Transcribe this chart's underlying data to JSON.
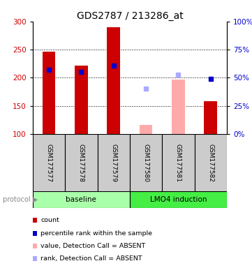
{
  "title": "GDS2787 / 213286_at",
  "samples": [
    "GSM177577",
    "GSM177578",
    "GSM177579",
    "GSM177580",
    "GSM177581",
    "GSM177582"
  ],
  "ylim_left": [
    100,
    300
  ],
  "ylim_right": [
    0,
    100
  ],
  "yticks_left": [
    100,
    150,
    200,
    250,
    300
  ],
  "yticks_right": [
    0,
    25,
    50,
    75,
    100
  ],
  "red_bars_present_idx": [
    0,
    1,
    2,
    5
  ],
  "red_bars_present_vals": [
    246,
    222,
    290,
    158
  ],
  "red_bars_absent_idx": [
    3,
    4
  ],
  "red_bars_absent_vals": [
    116,
    197
  ],
  "blue_sq_present_idx": [
    0,
    1,
    2,
    5
  ],
  "blue_sq_present_vals": [
    214,
    210,
    222,
    198
  ],
  "blue_sq_absent_idx": [
    3,
    4
  ],
  "blue_sq_absent_vals": [
    180,
    205
  ],
  "red_color": "#cc0000",
  "red_absent_color": "#ffaaaa",
  "blue_color": "#0000cc",
  "blue_absent_color": "#aaaaff",
  "sample_box_color": "#cccccc",
  "protocol_baseline_color": "#aaffaa",
  "protocol_lmo4_color": "#44ee44",
  "bar_width": 0.4,
  "title_fontsize": 10,
  "protocol_groups": [
    {
      "label": "baseline",
      "start": 0,
      "end": 2,
      "color": "#aaffaa"
    },
    {
      "label": "LMO4 induction",
      "start": 3,
      "end": 5,
      "color": "#44ee44"
    }
  ],
  "legend_items": [
    {
      "label": "count",
      "color": "#cc0000"
    },
    {
      "label": "percentile rank within the sample",
      "color": "#0000cc"
    },
    {
      "label": "value, Detection Call = ABSENT",
      "color": "#ffaaaa"
    },
    {
      "label": "rank, Detection Call = ABSENT",
      "color": "#aaaaff"
    }
  ]
}
